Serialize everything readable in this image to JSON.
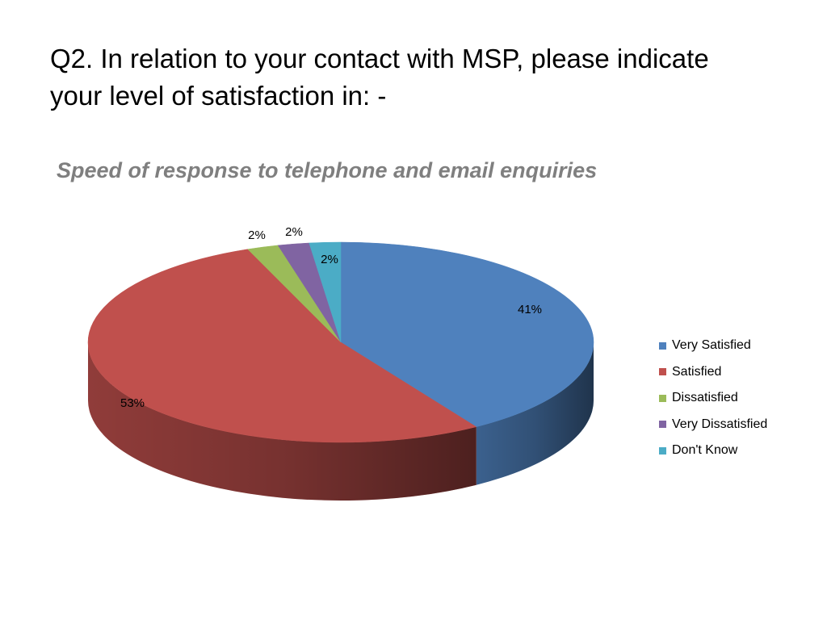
{
  "slide": {
    "title": "Q2. In relation to your contact with MSP, please indicate\nyour level of satisfaction in: -"
  },
  "chart_data": {
    "type": "pie",
    "title": "Speed of response to telephone and email enquiries",
    "legend_position": "right",
    "three_d": true,
    "categories": [
      "Very Satisfied",
      "Satisfied",
      "Dissatisfied",
      "Very Dissatisfied",
      "Don't Know"
    ],
    "values": [
      41,
      53,
      2,
      2,
      2
    ],
    "labels": [
      "41%",
      "53%",
      "2%",
      "2%",
      "2%"
    ],
    "colors": [
      "#4f81bd",
      "#c0504d",
      "#9bbb59",
      "#8064a2",
      "#4bacc6"
    ]
  }
}
